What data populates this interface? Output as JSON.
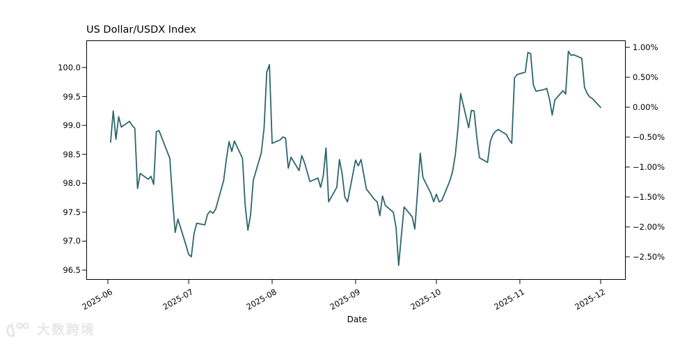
{
  "chart_data": {
    "type": "line",
    "title": "US Dollar/USDX Index",
    "xlabel": "Date",
    "grid": false,
    "legend": "none",
    "line_color": "#2b656b",
    "series": [
      {
        "name": "USDX",
        "dates": [
          "2025-06-02",
          "2025-06-03",
          "2025-06-04",
          "2025-06-05",
          "2025-06-06",
          "2025-06-09",
          "2025-06-10",
          "2025-06-11",
          "2025-06-12",
          "2025-06-13",
          "2025-06-16",
          "2025-06-17",
          "2025-06-18",
          "2025-06-19",
          "2025-06-20",
          "2025-06-23",
          "2025-06-24",
          "2025-06-25",
          "2025-06-26",
          "2025-06-27",
          "2025-06-30",
          "2025-07-01",
          "2025-07-02",
          "2025-07-03",
          "2025-07-04",
          "2025-07-07",
          "2025-07-08",
          "2025-07-09",
          "2025-07-10",
          "2025-07-11",
          "2025-07-14",
          "2025-07-15",
          "2025-07-16",
          "2025-07-17",
          "2025-07-18",
          "2025-07-21",
          "2025-07-22",
          "2025-07-23",
          "2025-07-24",
          "2025-07-25",
          "2025-07-28",
          "2025-07-29",
          "2025-07-30",
          "2025-07-31",
          "2025-08-01",
          "2025-08-04",
          "2025-08-05",
          "2025-08-06",
          "2025-08-07",
          "2025-08-08",
          "2025-08-11",
          "2025-08-12",
          "2025-08-13",
          "2025-08-14",
          "2025-08-15",
          "2025-08-18",
          "2025-08-19",
          "2025-08-20",
          "2025-08-21",
          "2025-08-22",
          "2025-08-25",
          "2025-08-26",
          "2025-08-27",
          "2025-08-28",
          "2025-08-29",
          "2025-09-01",
          "2025-09-02",
          "2025-09-03",
          "2025-09-04",
          "2025-09-05",
          "2025-09-08",
          "2025-09-09",
          "2025-09-10",
          "2025-09-11",
          "2025-09-12",
          "2025-09-15",
          "2025-09-16",
          "2025-09-17",
          "2025-09-18",
          "2025-09-19",
          "2025-09-22",
          "2025-09-23",
          "2025-09-24",
          "2025-09-25",
          "2025-09-26",
          "2025-09-29",
          "2025-09-30",
          "2025-10-01",
          "2025-10-02",
          "2025-10-03",
          "2025-10-06",
          "2025-10-07",
          "2025-10-08",
          "2025-10-09",
          "2025-10-10",
          "2025-10-13",
          "2025-10-14",
          "2025-10-15",
          "2025-10-16",
          "2025-10-17",
          "2025-10-20",
          "2025-10-21",
          "2025-10-22",
          "2025-10-23",
          "2025-10-24",
          "2025-10-27",
          "2025-10-28",
          "2025-10-29",
          "2025-10-30",
          "2025-10-31",
          "2025-11-03",
          "2025-11-04",
          "2025-11-05",
          "2025-11-06",
          "2025-11-07",
          "2025-11-10",
          "2025-11-11",
          "2025-11-12",
          "2025-11-13",
          "2025-11-14",
          "2025-11-17",
          "2025-11-18",
          "2025-11-19",
          "2025-11-20",
          "2025-11-21",
          "2025-11-24",
          "2025-11-25",
          "2025-11-26",
          "2025-11-27",
          "2025-11-28",
          "2025-12-01"
        ],
        "values": [
          98.71,
          99.25,
          98.76,
          99.15,
          98.97,
          99.07,
          99.0,
          98.95,
          97.91,
          98.17,
          98.07,
          98.12,
          97.98,
          98.89,
          98.91,
          98.55,
          98.43,
          97.73,
          97.15,
          97.38,
          96.93,
          96.77,
          96.73,
          97.13,
          97.31,
          97.28,
          97.46,
          97.52,
          97.48,
          97.55,
          98.05,
          98.41,
          98.72,
          98.55,
          98.73,
          98.43,
          97.61,
          97.19,
          97.45,
          98.05,
          98.53,
          98.95,
          99.92,
          100.05,
          98.69,
          98.75,
          98.8,
          98.78,
          98.26,
          98.45,
          98.22,
          98.48,
          98.36,
          98.2,
          98.03,
          98.09,
          97.93,
          98.13,
          98.61,
          97.68,
          97.93,
          98.41,
          98.16,
          97.76,
          97.68,
          98.4,
          98.3,
          98.41,
          98.16,
          97.9,
          97.72,
          97.68,
          97.44,
          97.78,
          97.62,
          97.5,
          97.24,
          96.58,
          97.1,
          97.59,
          97.42,
          97.21,
          97.85,
          98.52,
          98.1,
          97.82,
          97.68,
          97.81,
          97.68,
          97.7,
          98.04,
          98.2,
          98.48,
          98.95,
          99.55,
          98.96,
          99.26,
          99.25,
          98.8,
          98.44,
          98.36,
          98.72,
          98.84,
          98.9,
          98.93,
          98.84,
          98.75,
          98.69,
          99.82,
          99.88,
          99.92,
          100.26,
          100.24,
          99.7,
          99.59,
          99.62,
          99.64,
          99.45,
          99.18,
          99.44,
          99.6,
          99.54,
          100.28,
          100.21,
          100.22,
          100.16,
          99.66,
          99.55,
          99.49,
          99.46,
          99.31
        ]
      }
    ],
    "left_axis": {
      "ticks": [
        100.0,
        99.5,
        99.0,
        98.5,
        98.0,
        97.5,
        97.0,
        96.5
      ],
      "range": [
        96.33,
        100.45
      ]
    },
    "right_axis": {
      "unit": "%",
      "baseline_value": 99.31,
      "ticks": [
        {
          "label": "1.00%",
          "pct": 1.0
        },
        {
          "label": "0.50%",
          "pct": 0.5
        },
        {
          "label": "0.00%",
          "pct": 0.0
        },
        {
          "label": "−0.50%",
          "pct": -0.5
        },
        {
          "label": "−1.00%",
          "pct": -1.0
        },
        {
          "label": "−1.50%",
          "pct": -1.5
        },
        {
          "label": "−2.00%",
          "pct": -2.0
        },
        {
          "label": "−2.50%",
          "pct": -2.5
        }
      ]
    },
    "x_axis": {
      "label": "Date",
      "ticks": [
        {
          "label": "2025-06",
          "date": "2025-06-01"
        },
        {
          "label": "2025-07",
          "date": "2025-07-01"
        },
        {
          "label": "2025-08",
          "date": "2025-08-01"
        },
        {
          "label": "2025-09",
          "date": "2025-09-01"
        },
        {
          "label": "2025-10",
          "date": "2025-10-01"
        },
        {
          "label": "2025-11",
          "date": "2025-11-01"
        },
        {
          "label": "2025-12",
          "date": "2025-12-01"
        }
      ]
    }
  },
  "watermark": {
    "text": "大数跨境",
    "icon": "100-logo-icon",
    "color": "#e7e7e7"
  }
}
